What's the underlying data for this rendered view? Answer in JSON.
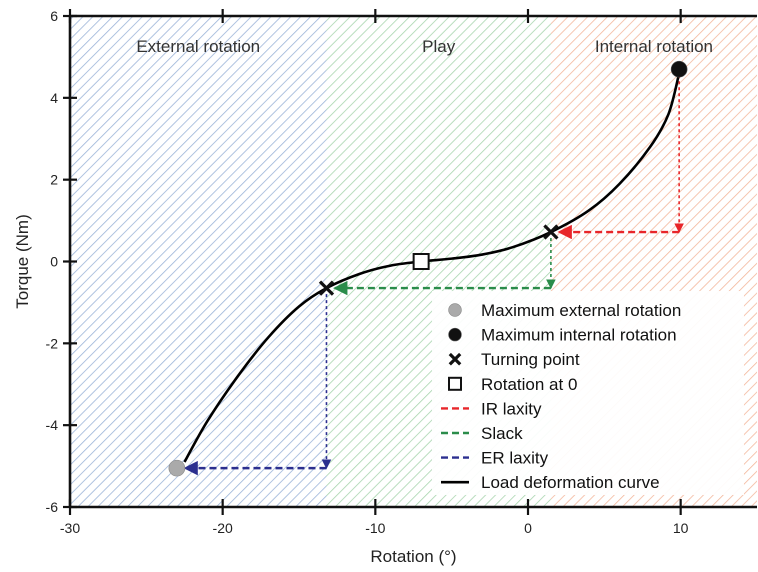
{
  "chart_data": {
    "type": "line",
    "xlabel": "Rotation (°)",
    "ylabel": "Torque (Nm)",
    "xlim": [
      -30,
      15
    ],
    "ylim": [
      -6,
      6
    ],
    "x_ticks": [
      -30,
      -20,
      -10,
      0,
      10
    ],
    "y_ticks": [
      -6,
      -4,
      -2,
      0,
      2,
      4,
      6
    ],
    "grid": false,
    "legend_position": "right",
    "regions": [
      {
        "name": "External rotation",
        "x_range": [
          -30,
          -13.2
        ],
        "color": "#9bb4d8"
      },
      {
        "name": "Play",
        "x_range": [
          -13.2,
          1.5
        ],
        "color": "#a8d5ae"
      },
      {
        "name": "Internal rotation",
        "x_range": [
          1.5,
          15
        ],
        "color": "#f3b79c"
      }
    ],
    "series": [
      {
        "name": "Load deformation curve",
        "color": "#000000",
        "points": [
          {
            "x": -22.5,
            "y": -4.9
          },
          {
            "x": -21,
            "y": -3.9
          },
          {
            "x": -19,
            "y": -2.8
          },
          {
            "x": -17,
            "y": -1.85
          },
          {
            "x": -15,
            "y": -1.1
          },
          {
            "x": -13.2,
            "y": -0.65
          },
          {
            "x": -11,
            "y": -0.3
          },
          {
            "x": -9,
            "y": -0.1
          },
          {
            "x": -7,
            "y": 0.0
          },
          {
            "x": -5,
            "y": 0.07
          },
          {
            "x": -3,
            "y": 0.17
          },
          {
            "x": -1,
            "y": 0.35
          },
          {
            "x": 1.5,
            "y": 0.72
          },
          {
            "x": 4,
            "y": 1.25
          },
          {
            "x": 6,
            "y": 1.9
          },
          {
            "x": 8,
            "y": 2.8
          },
          {
            "x": 9.2,
            "y": 3.6
          },
          {
            "x": 9.9,
            "y": 4.6
          }
        ]
      }
    ],
    "markers": [
      {
        "name": "Maximum external rotation",
        "shape": "circle",
        "color": "#aaaaaa",
        "x": -23.0,
        "y": -5.05
      },
      {
        "name": "Maximum internal rotation",
        "shape": "circle",
        "color": "#111111",
        "x": 9.9,
        "y": 4.7
      },
      {
        "name": "Turning point",
        "shape": "x",
        "color": "#111111",
        "x": -13.2,
        "y": -0.65
      },
      {
        "name": "Turning point",
        "shape": "x",
        "color": "#111111",
        "x": 1.5,
        "y": 0.72
      },
      {
        "name": "Rotation at 0",
        "shape": "square",
        "color": "#111111",
        "x": -7.0,
        "y": 0.0
      }
    ],
    "laxity_arrows": [
      {
        "name": "IR laxity",
        "color": "#e8262a",
        "vertical": {
          "x": 9.9,
          "from_y": 4.7,
          "to_y": 0.72
        },
        "horizontal": {
          "y": 0.72,
          "from_x": 9.9,
          "to_x": 1.5
        }
      },
      {
        "name": "Slack",
        "color": "#2a8c4a",
        "vertical": {
          "x": 1.5,
          "from_y": 0.72,
          "to_y": -0.65
        },
        "horizontal": {
          "y": -0.65,
          "from_x": 1.5,
          "to_x": -13.2
        }
      },
      {
        "name": "ER laxity",
        "color": "#2b2f8f",
        "vertical": {
          "x": -13.2,
          "from_y": -0.65,
          "to_y": -5.05
        },
        "horizontal": {
          "y": -5.05,
          "from_x": -13.2,
          "to_x": -23.0
        }
      }
    ],
    "legend": [
      {
        "label": "Maximum external rotation",
        "kind": "circle",
        "color": "#aaaaaa"
      },
      {
        "label": "Maximum internal rotation",
        "kind": "circle",
        "color": "#111111"
      },
      {
        "label": "Turning point",
        "kind": "x",
        "color": "#111111"
      },
      {
        "label": "Rotation at 0",
        "kind": "square",
        "color": "#111111"
      },
      {
        "label": "IR laxity",
        "kind": "dash",
        "color": "#e8262a"
      },
      {
        "label": "Slack",
        "kind": "dash",
        "color": "#2a8c4a"
      },
      {
        "label": "ER laxity",
        "kind": "dash",
        "color": "#2b2f8f"
      },
      {
        "label": "Load deformation curve",
        "kind": "line",
        "color": "#000000"
      }
    ]
  }
}
